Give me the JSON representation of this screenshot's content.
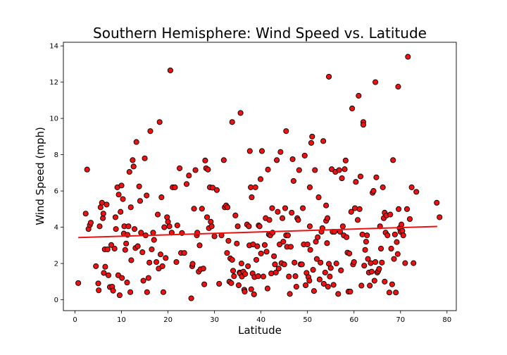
{
  "chart_data": {
    "type": "scatter",
    "title": "Southern Hemisphere: Wind Speed vs. Latitude",
    "xlabel": "Latitude",
    "ylabel": "Wind Speed (mph)",
    "xlim": [
      -2.5,
      82
    ],
    "ylim": [
      -0.6,
      14.2
    ],
    "xticks": [
      0,
      10,
      20,
      30,
      40,
      50,
      60,
      70,
      80
    ],
    "yticks": [
      0,
      2,
      4,
      6,
      8,
      10,
      12,
      14
    ],
    "grid": false,
    "legend": "none",
    "marker_color": "#ee1111",
    "marker_edge": "#000000",
    "regression": {
      "color": "#ee1111",
      "x": [
        0.7,
        77.9
      ],
      "y": [
        3.43,
        4.04
      ]
    },
    "points": [
      [
        0.7,
        0.92
      ],
      [
        2.3,
        4.75
      ],
      [
        2.6,
        7.18
      ],
      [
        2.9,
        3.9
      ],
      [
        3.2,
        4.12
      ],
      [
        3.4,
        4.25
      ],
      [
        4.5,
        1.85
      ],
      [
        5.0,
        0.9
      ],
      [
        5.1,
        0.52
      ],
      [
        5.3,
        4.05
      ],
      [
        5.5,
        5.1
      ],
      [
        5.8,
        5.35
      ],
      [
        6.0,
        4.5
      ],
      [
        6.1,
        4.75
      ],
      [
        6.2,
        1.48
      ],
      [
        6.4,
        2.78
      ],
      [
        6.5,
        1.82
      ],
      [
        6.8,
        5.25
      ],
      [
        7.0,
        2.78
      ],
      [
        7.2,
        1.35
      ],
      [
        7.5,
        0.7
      ],
      [
        7.8,
        3.02
      ],
      [
        8.0,
        0.72
      ],
      [
        8.2,
        0.5
      ],
      [
        8.5,
        2.82
      ],
      [
        8.7,
        4.55
      ],
      [
        8.8,
        3.9
      ],
      [
        9.1,
        6.2
      ],
      [
        9.3,
        1.35
      ],
      [
        9.6,
        0.25
      ],
      [
        9.4,
        5.8
      ],
      [
        9.8,
        4.85
      ],
      [
        10.0,
        6.3
      ],
      [
        10.1,
        1.2
      ],
      [
        10.3,
        5.55
      ],
      [
        10.5,
        3.65
      ],
      [
        10.6,
        4.05
      ],
      [
        10.8,
        2.75
      ],
      [
        11.0,
        3.1
      ],
      [
        11.3,
        3.58
      ],
      [
        11.5,
        4.05
      ],
      [
        11.2,
        0.95
      ],
      [
        11.7,
        7.05
      ],
      [
        11.9,
        0.42
      ],
      [
        12.1,
        2.18
      ],
      [
        12.0,
        5.1
      ],
      [
        12.4,
        7.7
      ],
      [
        12.6,
        7.35
      ],
      [
        12.8,
        3.9
      ],
      [
        13.0,
        2.85
      ],
      [
        13.2,
        8.7
      ],
      [
        13.5,
        2.95
      ],
      [
        13.8,
        6.25
      ],
      [
        14.0,
        5.45
      ],
      [
        14.2,
        3.7
      ],
      [
        14.5,
        2.62
      ],
      [
        14.7,
        1.05
      ],
      [
        15.0,
        7.8
      ],
      [
        15.2,
        3.55
      ],
      [
        15.4,
        5.75
      ],
      [
        15.5,
        0.42
      ],
      [
        15.8,
        1.2
      ],
      [
        16.0,
        2.05
      ],
      [
        16.2,
        9.3
      ],
      [
        16.5,
        2.78
      ],
      [
        16.8,
        3.7
      ],
      [
        17.0,
        3.3
      ],
      [
        17.5,
        2.08
      ],
      [
        17.8,
        4.7
      ],
      [
        18.0,
        1.72
      ],
      [
        18.2,
        9.8
      ],
      [
        18.4,
        2.5
      ],
      [
        18.6,
        5.65
      ],
      [
        18.8,
        1.85
      ],
      [
        19.0,
        0.42
      ],
      [
        19.2,
        4.0
      ],
      [
        19.5,
        2.3
      ],
      [
        19.8,
        4.55
      ],
      [
        20.0,
        4.3
      ],
      [
        20.3,
        4.05
      ],
      [
        20.5,
        12.65
      ],
      [
        20.8,
        3.7
      ],
      [
        21.0,
        6.2
      ],
      [
        21.5,
        6.2
      ],
      [
        21.8,
        2.08
      ],
      [
        22.0,
        4.1
      ],
      [
        22.5,
        7.25
      ],
      [
        22.8,
        2.58
      ],
      [
        23.0,
        3.68
      ],
      [
        23.5,
        2.58
      ],
      [
        24.0,
        6.38
      ],
      [
        24.5,
        6.85
      ],
      [
        25.0,
        0.08
      ],
      [
        25.2,
        1.85
      ],
      [
        25.3,
        1.98
      ],
      [
        25.6,
        5.02
      ],
      [
        25.9,
        7.15
      ],
      [
        26.2,
        3.55
      ],
      [
        26.3,
        3.7
      ],
      [
        26.6,
        1.55
      ],
      [
        26.8,
        3.0
      ],
      [
        27.0,
        1.68
      ],
      [
        27.3,
        5.02
      ],
      [
        27.6,
        1.72
      ],
      [
        27.8,
        0.85
      ],
      [
        28.0,
        7.68
      ],
      [
        28.2,
        7.25
      ],
      [
        28.4,
        4.55
      ],
      [
        28.6,
        7.18
      ],
      [
        28.8,
        3.95
      ],
      [
        29.0,
        6.2
      ],
      [
        29.2,
        4.3
      ],
      [
        29.4,
        4.05
      ],
      [
        29.6,
        6.18
      ],
      [
        30.0,
        3.5
      ],
      [
        30.5,
        6.05
      ],
      [
        31.0,
        0.88
      ],
      [
        31.5,
        3.55
      ],
      [
        32.0,
        7.7
      ],
      [
        32.2,
        5.1
      ],
      [
        32.5,
        5.2
      ],
      [
        32.7,
        2.58
      ],
      [
        32.8,
        5.1
      ],
      [
        33.0,
        3.25
      ],
      [
        33.2,
        1.0
      ],
      [
        33.4,
        2.28
      ],
      [
        33.6,
        0.92
      ],
      [
        33.8,
        2.2
      ],
      [
        34.0,
        1.6
      ],
      [
        34.2,
        1.3
      ],
      [
        33.8,
        9.8
      ],
      [
        34.5,
        4.65
      ],
      [
        34.8,
        3.1
      ],
      [
        35.0,
        4.05
      ],
      [
        35.2,
        0.8
      ],
      [
        35.4,
        1.5
      ],
      [
        35.5,
        1.45
      ],
      [
        35.8,
        2.0
      ],
      [
        35.9,
        1.28
      ],
      [
        35.6,
        10.3
      ],
      [
        36.2,
        1.55
      ],
      [
        36.4,
        0.55
      ],
      [
        36.5,
        0.45
      ],
      [
        36.6,
        1.42
      ],
      [
        37.0,
        4.15
      ],
      [
        37.2,
        1.85
      ],
      [
        37.4,
        4.05
      ],
      [
        37.5,
        3.0
      ],
      [
        37.6,
        8.2
      ],
      [
        37.8,
        6.2
      ],
      [
        37.9,
        0.58
      ],
      [
        38.0,
        5.65
      ],
      [
        38.2,
        1.45
      ],
      [
        38.3,
        3.05
      ],
      [
        38.5,
        0.3
      ],
      [
        38.6,
        1.25
      ],
      [
        38.8,
        6.2
      ],
      [
        39.0,
        2.2
      ],
      [
        39.2,
        2.95
      ],
      [
        39.4,
        1.3
      ],
      [
        39.5,
        4.1
      ],
      [
        39.7,
        4.05
      ],
      [
        39.9,
        6.65
      ],
      [
        40.0,
        2.55
      ],
      [
        40.2,
        8.2
      ],
      [
        40.5,
        1.28
      ],
      [
        40.8,
        3.02
      ],
      [
        41.0,
        4.5
      ],
      [
        41.2,
        2.65
      ],
      [
        41.4,
        0.62
      ],
      [
        41.5,
        7.18
      ],
      [
        41.7,
        3.6
      ],
      [
        41.8,
        4.4
      ],
      [
        42.0,
        3.55
      ],
      [
        42.2,
        1.45
      ],
      [
        42.4,
        5.05
      ],
      [
        42.5,
        3.7
      ],
      [
        42.8,
        2.4
      ],
      [
        43.0,
        1.95
      ],
      [
        43.2,
        1.5
      ],
      [
        43.4,
        7.7
      ],
      [
        43.6,
        4.85
      ],
      [
        43.8,
        1.72
      ],
      [
        44.0,
        3.05
      ],
      [
        44.2,
        8.15
      ],
      [
        44.4,
        2.02
      ],
      [
        44.6,
        4.5
      ],
      [
        44.8,
        3.2
      ],
      [
        45.0,
        1.95
      ],
      [
        45.2,
        5.05
      ],
      [
        45.4,
        3.55
      ],
      [
        45.6,
        2.92
      ],
      [
        45.8,
        3.55
      ],
      [
        45.4,
        9.3
      ],
      [
        46.0,
        1.28
      ],
      [
        46.2,
        0.32
      ],
      [
        46.4,
        2.92
      ],
      [
        46.6,
        4.8
      ],
      [
        46.8,
        7.75
      ],
      [
        47.0,
        6.55
      ],
      [
        47.2,
        2.05
      ],
      [
        47.4,
        1.3
      ],
      [
        47.6,
        0.72
      ],
      [
        47.8,
        4.5
      ],
      [
        48.0,
        4.4
      ],
      [
        48.2,
        7.15
      ],
      [
        48.5,
        1.95
      ],
      [
        48.8,
        1.95
      ],
      [
        49.0,
        5.05
      ],
      [
        49.2,
        3.05
      ],
      [
        49.4,
        7.95
      ],
      [
        49.6,
        0.8
      ],
      [
        49.8,
        1.48
      ],
      [
        50.0,
        3.05
      ],
      [
        50.2,
        1.25
      ],
      [
        50.4,
        1.05
      ],
      [
        50.5,
        4.05
      ],
      [
        50.5,
        6.2
      ],
      [
        50.6,
        2.75
      ],
      [
        50.8,
        8.65
      ],
      [
        51.0,
        9.0
      ],
      [
        51.2,
        1.65
      ],
      [
        51.4,
        0.48
      ],
      [
        51.6,
        7.15
      ],
      [
        51.8,
        3.2
      ],
      [
        52.0,
        2.25
      ],
      [
        52.2,
        3.45
      ],
      [
        52.4,
        5.65
      ],
      [
        52.6,
        1.12
      ],
      [
        52.8,
        2.05
      ],
      [
        53.0,
        3.75
      ],
      [
        53.2,
        3.95
      ],
      [
        53.4,
        8.75
      ],
      [
        53.5,
        0.88
      ],
      [
        53.8,
        1.5
      ],
      [
        54.0,
        4.35
      ],
      [
        54.2,
        3.12
      ],
      [
        54.4,
        0.72
      ],
      [
        54.6,
        1.98
      ],
      [
        54.8,
        1.28
      ],
      [
        54.0,
        5.2
      ],
      [
        54.3,
        4.5
      ],
      [
        54.6,
        12.3
      ],
      [
        55.0,
        1.75
      ],
      [
        55.2,
        7.2
      ],
      [
        55.4,
        3.75
      ],
      [
        55.6,
        0.82
      ],
      [
        55.8,
        3.75
      ],
      [
        56.0,
        7.05
      ],
      [
        56.2,
        2.0
      ],
      [
        56.6,
        0.32
      ],
      [
        56.8,
        7.15
      ],
      [
        57.0,
        3.75
      ],
      [
        57.2,
        1.62
      ],
      [
        57.4,
        6.7
      ],
      [
        57.6,
        4.05
      ],
      [
        57.8,
        3.55
      ],
      [
        58.0,
        7.2
      ],
      [
        58.2,
        7.68
      ],
      [
        58.4,
        3.45
      ],
      [
        58.6,
        2.6
      ],
      [
        58.8,
        0.45
      ],
      [
        59.0,
        2.55
      ],
      [
        59.2,
        0.45
      ],
      [
        59.4,
        4.85
      ],
      [
        59.6,
        10.55
      ],
      [
        59.8,
        1.95
      ],
      [
        60.0,
        2.08
      ],
      [
        60.2,
        5.05
      ],
      [
        60.4,
        6.5
      ],
      [
        60.8,
        4.4
      ],
      [
        61.0,
        11.25
      ],
      [
        61.2,
        5.0
      ],
      [
        61.4,
        6.8
      ],
      [
        61.6,
        0.78
      ],
      [
        61.8,
        3.6
      ],
      [
        62.0,
        9.8
      ],
      [
        62.0,
        9.65
      ],
      [
        62.2,
        1.88
      ],
      [
        62.4,
        2.75
      ],
      [
        62.6,
        3.2
      ],
      [
        62.8,
        3.55
      ],
      [
        63.0,
        2.25
      ],
      [
        63.2,
        1.5
      ],
      [
        63.4,
        0.78
      ],
      [
        63.6,
        2.02
      ],
      [
        63.8,
        1.55
      ],
      [
        64.0,
        5.9
      ],
      [
        64.2,
        6.0
      ],
      [
        64.4,
        1.05
      ],
      [
        64.6,
        2.08
      ],
      [
        64.6,
        12.0
      ],
      [
        64.8,
        6.75
      ],
      [
        65.0,
        1.5
      ],
      [
        65.2,
        1.58
      ],
      [
        65.4,
        1.7
      ],
      [
        65.6,
        4.05
      ],
      [
        65.8,
        2.82
      ],
      [
        66.0,
        2.05
      ],
      [
        66.2,
        6.2
      ],
      [
        66.4,
        4.5
      ],
      [
        66.6,
        1.0
      ],
      [
        66.6,
        4.8
      ],
      [
        66.8,
        3.7
      ],
      [
        67.0,
        4.65
      ],
      [
        67.2,
        3.55
      ],
      [
        67.6,
        0.4
      ],
      [
        67.8,
        4.7
      ],
      [
        68.0,
        2.82
      ],
      [
        68.2,
        0.85
      ],
      [
        68.4,
        7.7
      ],
      [
        68.6,
        2.25
      ],
      [
        68.8,
        3.6
      ],
      [
        69.0,
        0.4
      ],
      [
        69.2,
        3.18
      ],
      [
        69.4,
        2.52
      ],
      [
        69.6,
        5.0
      ],
      [
        69.5,
        11.75
      ],
      [
        69.8,
        3.95
      ],
      [
        70.0,
        3.75
      ],
      [
        70.2,
        4.15
      ],
      [
        70.4,
        3.8
      ],
      [
        70.6,
        3.55
      ],
      [
        71.0,
        2.02
      ],
      [
        71.4,
        5.0
      ],
      [
        71.6,
        13.4
      ],
      [
        72.0,
        4.45
      ],
      [
        72.4,
        6.2
      ],
      [
        72.8,
        2.02
      ],
      [
        73.4,
        5.95
      ],
      [
        77.8,
        5.35
      ],
      [
        78.4,
        4.55
      ]
    ]
  }
}
